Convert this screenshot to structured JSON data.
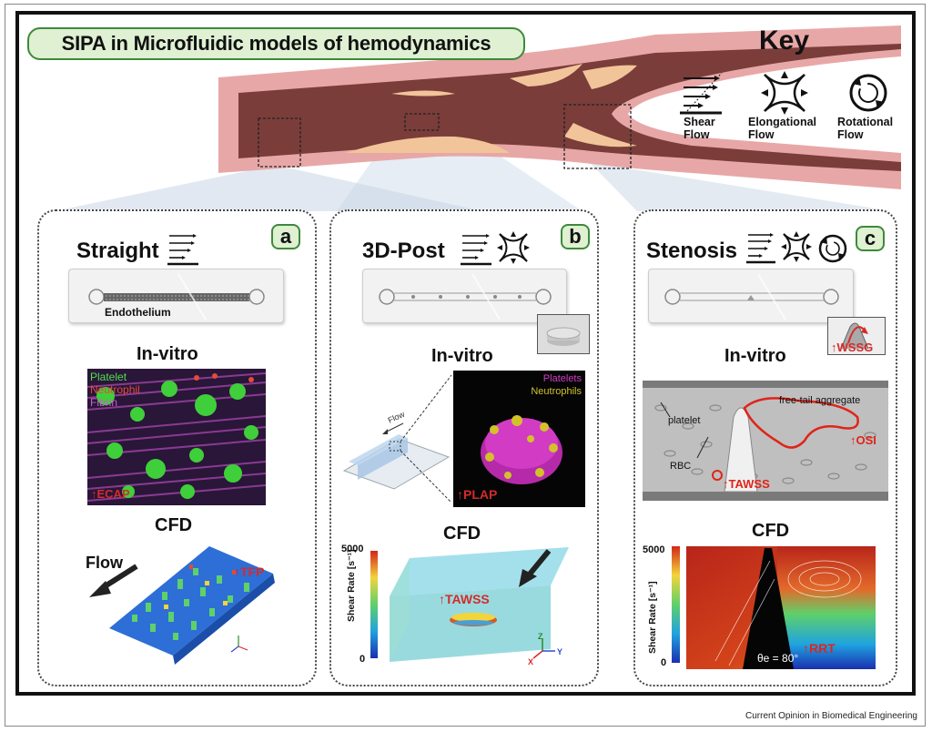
{
  "title": "SIPA in Microfluidic models of hemodynamics",
  "key": {
    "title": "Key",
    "items": [
      {
        "label_line1": "Shear",
        "label_line2": "Flow",
        "icon": "shear-flow-icon"
      },
      {
        "label_line1": "Elongational",
        "label_line2": "Flow",
        "icon": "elongational-flow-icon"
      },
      {
        "label_line1": "Rotational",
        "label_line2": "Flow",
        "icon": "rotational-flow-icon"
      }
    ]
  },
  "panels": [
    {
      "letter": "a",
      "title": "Straight",
      "chip_label": "Endothelium",
      "invitro_heading": "In-vitro",
      "invitro_legend": [
        "Platelet",
        "Neutrophil",
        "Fibrin"
      ],
      "invitro_metric": "↑ECAP",
      "cfd_heading": "CFD",
      "cfd_flow_label": "Flow",
      "cfd_metric": "↑TFP"
    },
    {
      "letter": "b",
      "title": "3D-Post",
      "invitro_heading": "In-vitro",
      "invitro_flow_label": "Flow",
      "invitro_legend": [
        "Platelets",
        "Neutrophils"
      ],
      "invitro_metric": "↑PLAP",
      "cfd_heading": "CFD",
      "cfd_scale_max": "5000",
      "cfd_scale_min": "0",
      "cfd_scale_label": "Shear Rate [s⁻¹]",
      "cfd_metric": "↑TAWSS",
      "axes": [
        "Z",
        "Y",
        "X"
      ]
    },
    {
      "letter": "c",
      "title": "Stenosis",
      "inset_metric": "↑WSSG",
      "invitro_heading": "In-vitro",
      "invitro_labels": [
        "platelet",
        "free-tail aggregate",
        "RBC"
      ],
      "invitro_metric_1": "↑OSI",
      "invitro_metric_2": "↑TAWSS",
      "cfd_heading": "CFD",
      "cfd_scale_max": "5000",
      "cfd_scale_min": "0",
      "cfd_scale_label": "Shear Rate [s⁻¹]",
      "cfd_angle": "θe = 80°",
      "cfd_metric": "↑RRT"
    }
  ],
  "footer": "Current Opinion in Biomedical Engineering",
  "colors": {
    "accent_green": "#3d8a3a",
    "pill_fill": "#dff0d3",
    "metric_red": "#d42b2b",
    "vessel_wall": "#e39a9a",
    "vessel_lumen": "#7a3d3a",
    "plaque": "#f2c49a"
  }
}
